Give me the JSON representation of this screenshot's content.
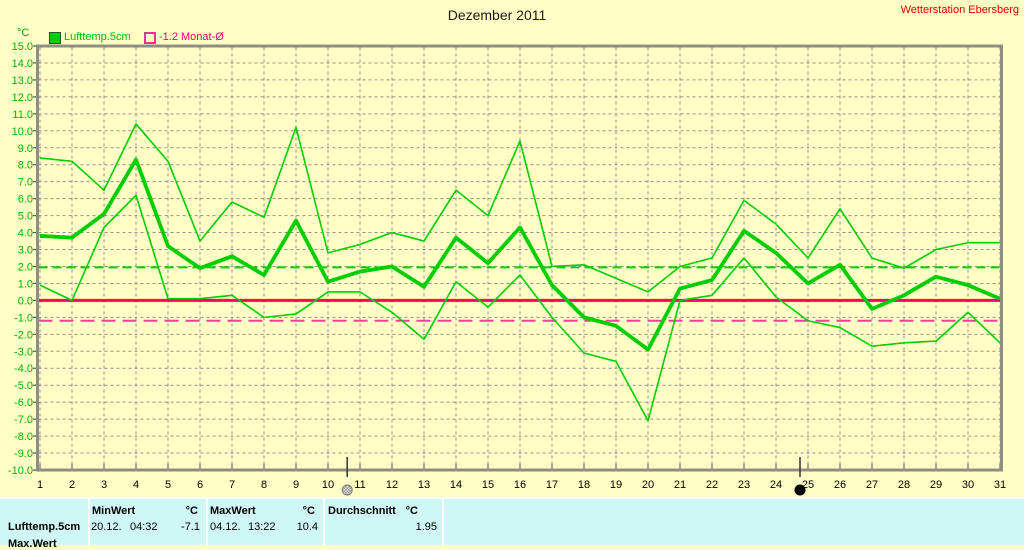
{
  "page": {
    "station": "Wetterstation Ebersberg"
  },
  "legend": {
    "unit": "°C",
    "series1": "Lufttemp.5cm",
    "series2": "-1.2 Monat-Ø"
  },
  "chart_data": {
    "type": "line",
    "title": "Dezember 2011",
    "ylabel": "°C",
    "ylim": [
      -10.0,
      15.0
    ],
    "ytick_step": 1.0,
    "grid": true,
    "legend_position": "top-left",
    "x": [
      1,
      2,
      3,
      4,
      5,
      6,
      7,
      8,
      9,
      10,
      11,
      12,
      13,
      14,
      15,
      16,
      17,
      18,
      19,
      20,
      21,
      22,
      23,
      24,
      25,
      26,
      27,
      28,
      29,
      30,
      31
    ],
    "series": [
      {
        "name": "lufttemp-5cm-daily-max",
        "thickness": "thin",
        "values": [
          8.4,
          8.2,
          6.5,
          10.4,
          8.2,
          3.5,
          5.8,
          4.9,
          10.2,
          2.8,
          3.3,
          4.0,
          3.5,
          6.5,
          5.0,
          9.4,
          2.0,
          2.1,
          1.3,
          0.5,
          2.0,
          2.5,
          5.9,
          4.5,
          2.5,
          5.4,
          2.5,
          1.9,
          3.0,
          3.4,
          3.4
        ]
      },
      {
        "name": "lufttemp-5cm-daily-min",
        "thickness": "thin",
        "values": [
          0.9,
          0.0,
          4.3,
          6.2,
          0.1,
          0.1,
          0.3,
          -1.0,
          -0.8,
          0.5,
          0.5,
          -0.7,
          -2.3,
          1.1,
          -0.4,
          1.5,
          -1.0,
          -3.1,
          -3.6,
          -7.1,
          0.0,
          0.3,
          2.5,
          0.2,
          -1.2,
          -1.6,
          -2.7,
          -2.5,
          -2.4,
          -0.7,
          -2.5
        ]
      },
      {
        "name": "lufttemp-5cm-daily-avg",
        "thickness": "thick",
        "values": [
          3.8,
          3.7,
          5.1,
          8.3,
          3.2,
          1.9,
          2.6,
          1.5,
          4.7,
          1.1,
          1.7,
          2.0,
          0.8,
          3.7,
          2.2,
          4.3,
          0.9,
          -1.0,
          -1.5,
          -2.9,
          0.7,
          1.2,
          4.1,
          2.8,
          1.0,
          2.1,
          -0.5,
          0.3,
          1.4,
          0.9,
          0.1
        ]
      }
    ],
    "reference_lines": [
      {
        "kind": "zero",
        "value": 0.0,
        "style": "solid",
        "color": "#FF0066"
      },
      {
        "kind": "durchschnitt",
        "value": 1.95,
        "style": "dashed",
        "color": "#00CE00"
      },
      {
        "kind": "monat-avg",
        "value": -1.2,
        "style": "dashed",
        "color": "#FF3D94"
      }
    ],
    "moon_markers": [
      {
        "day": 10.6,
        "phase": "full-moon"
      },
      {
        "day": 24.75,
        "phase": "new-moon"
      }
    ],
    "colors": {
      "series_green": "#00CE00",
      "axis_label_green": "#00B400",
      "grid_gray": "#8F8F8F",
      "border_gray": "#8E8E82",
      "x_label_black": "#000000",
      "background_yellow": "#FFFFC6",
      "station_red": "#DD0000",
      "table_cyan": "#CFF7F5"
    }
  },
  "table": {
    "headers": {
      "min": "MinWert",
      "max": "MaxWert",
      "avg": "Durchschnitt",
      "unit": "°C"
    },
    "row": {
      "label": "Lufttemp.5cm",
      "min_date": "20.12.",
      "min_time": "04:32",
      "min_value": "-7.1",
      "max_date": "04.12.",
      "max_time": "13:22",
      "max_value": "10.4",
      "avg_value": "1.95"
    },
    "next_row_partial": "Max.Wert"
  }
}
